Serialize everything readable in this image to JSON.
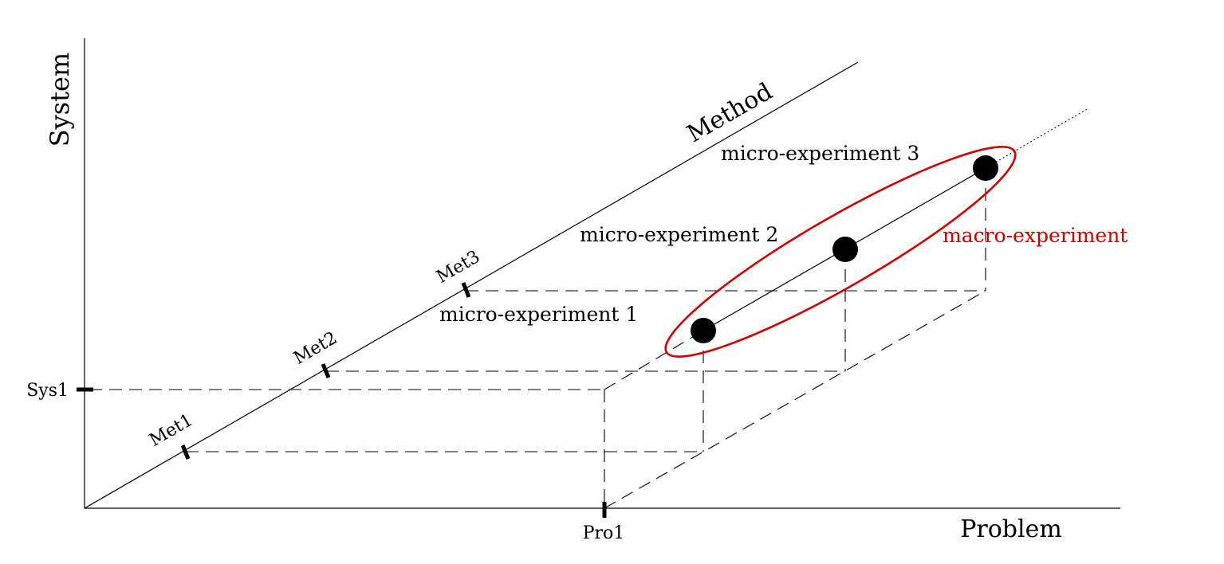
{
  "axes": {
    "system_label": "System",
    "problem_label": "Problem",
    "method_label": "Method"
  },
  "ticks": {
    "sys1": "Sys1",
    "pro1": "Pro1",
    "met1": "Met1",
    "met2": "Met2",
    "met3": "Met3"
  },
  "experiments": {
    "micro_1": "micro-experiment 1",
    "micro_2": "micro-experiment 2",
    "micro_3": "micro-experiment 3",
    "macro": "macro-experiment"
  },
  "colors": {
    "macro_accent": "#d00000",
    "ink": "#000000",
    "background": "#ffffff"
  }
}
